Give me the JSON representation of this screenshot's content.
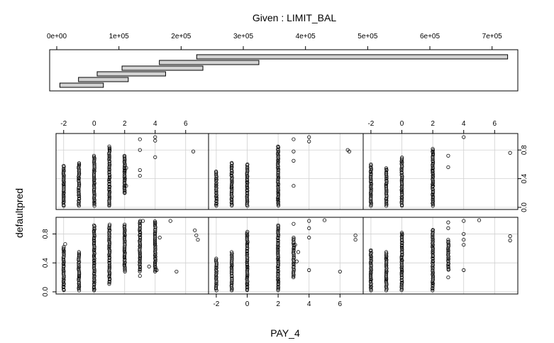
{
  "chart_data": {
    "type": "scatter",
    "subtype": "coplot",
    "title": "Given : LIMIT_BAL",
    "xlabel": "PAY_4",
    "ylabel": "defaultpred",
    "given": {
      "label": "Given : LIMIT_BAL",
      "xlim": [
        0,
        730000
      ],
      "ticks": [
        0,
        100000,
        200000,
        300000,
        400000,
        500000,
        600000,
        700000
      ],
      "tick_labels": [
        "0e+00",
        "1e+05",
        "2e+05",
        "3e+05",
        "4e+05",
        "5e+05",
        "6e+05",
        "7e+05"
      ],
      "intervals": [
        [
          5000,
          75000
        ],
        [
          35000,
          115000
        ],
        [
          65000,
          175000
        ],
        [
          105000,
          235000
        ],
        [
          165000,
          325000
        ],
        [
          225000,
          725000
        ]
      ]
    },
    "panel_xlim": [
      -2.5,
      7.5
    ],
    "panel_ylim": [
      -0.03,
      1.03
    ],
    "x_ticks": [
      -2,
      0,
      2,
      4,
      6
    ],
    "x_tick_labels": [
      "-2",
      "0",
      "2",
      "4",
      "6"
    ],
    "y_ticks": [
      0.0,
      0.4,
      0.8
    ],
    "y_tick_labels": [
      "0.0",
      "0.4",
      "0.8"
    ],
    "grid": true,
    "panels": [
      {
        "interval": 1,
        "columns": [
          {
            "x": -2,
            "range": [
              0.02,
              0.62
            ]
          },
          {
            "x": -1,
            "range": [
              0.02,
              0.55
            ]
          },
          {
            "x": 0,
            "range": [
              0.02,
              0.92
            ]
          },
          {
            "x": 1,
            "range": [
              0.11,
              0.93
            ]
          },
          {
            "x": 2,
            "range": [
              0.28,
              0.93
            ]
          },
          {
            "x": 3,
            "range": [
              0.28,
              0.98
            ]
          },
          {
            "x": 4,
            "range": [
              0.28,
              0.98
            ]
          }
        ],
        "points": [
          [
            -1.9,
            0.66
          ],
          [
            5.0,
            0.98
          ],
          [
            4.3,
            0.75
          ],
          [
            5.4,
            0.28
          ],
          [
            6.6,
            0.85
          ],
          [
            6.7,
            0.78
          ],
          [
            6.8,
            0.72
          ],
          [
            3.2,
            0.98
          ],
          [
            4.1,
            0.3
          ],
          [
            3.0,
            0.22
          ],
          [
            3.6,
            0.35
          ]
        ]
      },
      {
        "interval": 2,
        "columns": [
          {
            "x": -2,
            "range": [
              0.02,
              0.46
            ]
          },
          {
            "x": -1,
            "range": [
              0.02,
              0.55
            ]
          },
          {
            "x": 0,
            "range": [
              0.02,
              0.83
            ]
          },
          {
            "x": 2,
            "range": [
              0.02,
              0.92
            ]
          },
          {
            "x": 3,
            "range": [
              0.2,
              0.75
            ]
          }
        ],
        "points": [
          [
            3.0,
            0.94
          ],
          [
            4.0,
            0.98
          ],
          [
            4.0,
            0.88
          ],
          [
            4.0,
            0.75
          ],
          [
            5.0,
            0.99
          ],
          [
            4.0,
            0.3
          ],
          [
            6.0,
            0.28
          ],
          [
            7.0,
            0.78
          ],
          [
            7.0,
            0.72
          ],
          [
            3.2,
            0.42
          ],
          [
            3.3,
            0.55
          ],
          [
            3.1,
            0.65
          ]
        ]
      },
      {
        "interval": 3,
        "columns": [
          {
            "x": -2,
            "range": [
              0.02,
              0.58
            ]
          },
          {
            "x": -1,
            "range": [
              0.02,
              0.55
            ]
          },
          {
            "x": 0,
            "range": [
              0.02,
              0.82
            ]
          },
          {
            "x": 2,
            "range": [
              0.02,
              0.86
            ]
          },
          {
            "x": 3,
            "range": [
              0.3,
              0.72
            ]
          }
        ],
        "points": [
          [
            3.0,
            0.96
          ],
          [
            3.0,
            0.88
          ],
          [
            4.0,
            0.98
          ],
          [
            4.0,
            0.8
          ],
          [
            4.0,
            0.72
          ],
          [
            4.0,
            0.65
          ],
          [
            5.0,
            0.99
          ],
          [
            4.0,
            0.3
          ],
          [
            3.0,
            0.2
          ],
          [
            7.0,
            0.77
          ],
          [
            7.0,
            0.71
          ]
        ]
      },
      {
        "interval": 4,
        "columns": [
          {
            "x": -2,
            "range": [
              0.02,
              0.58
            ]
          },
          {
            "x": -1,
            "range": [
              0.02,
              0.62
            ]
          },
          {
            "x": 0,
            "range": [
              0.02,
              0.72
            ]
          },
          {
            "x": 1,
            "range": [
              0.02,
              0.85
            ]
          },
          {
            "x": 2,
            "range": [
              0.2,
              0.72
            ]
          }
        ],
        "points": [
          [
            3.0,
            0.95
          ],
          [
            3.0,
            0.8
          ],
          [
            4.0,
            0.98
          ],
          [
            4.0,
            0.93
          ],
          [
            4.0,
            0.7
          ],
          [
            2.0,
            0.52
          ],
          [
            2.1,
            0.55
          ],
          [
            3.0,
            0.52
          ],
          [
            3.0,
            0.44
          ],
          [
            2.1,
            0.3
          ],
          [
            2.0,
            0.2
          ],
          [
            6.5,
            0.78
          ]
        ]
      },
      {
        "interval": 5,
        "columns": [
          {
            "x": -2,
            "range": [
              0.02,
              0.5
            ]
          },
          {
            "x": -1,
            "range": [
              0.02,
              0.62
            ]
          },
          {
            "x": 0,
            "range": [
              0.02,
              0.6
            ]
          },
          {
            "x": 2,
            "range": [
              0.02,
              0.85
            ]
          }
        ],
        "points": [
          [
            3.0,
            0.95
          ],
          [
            3.0,
            0.78
          ],
          [
            4.0,
            0.98
          ],
          [
            4.0,
            0.92
          ],
          [
            3.0,
            0.3
          ],
          [
            3.0,
            0.65
          ],
          [
            6.6,
            0.78
          ],
          [
            6.5,
            0.8
          ]
        ]
      },
      {
        "interval": 6,
        "columns": [
          {
            "x": -2,
            "range": [
              0.02,
              0.6
            ]
          },
          {
            "x": -1,
            "range": [
              0.02,
              0.55
            ]
          },
          {
            "x": 0,
            "range": [
              0.02,
              0.7
            ]
          },
          {
            "x": 2,
            "range": [
              0.02,
              0.82
            ]
          }
        ],
        "points": [
          [
            3.0,
            0.72
          ],
          [
            3.0,
            0.56
          ],
          [
            2.0,
            0.3
          ],
          [
            4.0,
            0.98
          ],
          [
            7.0,
            0.76
          ],
          [
            2.0,
            0.5
          ]
        ]
      }
    ]
  }
}
